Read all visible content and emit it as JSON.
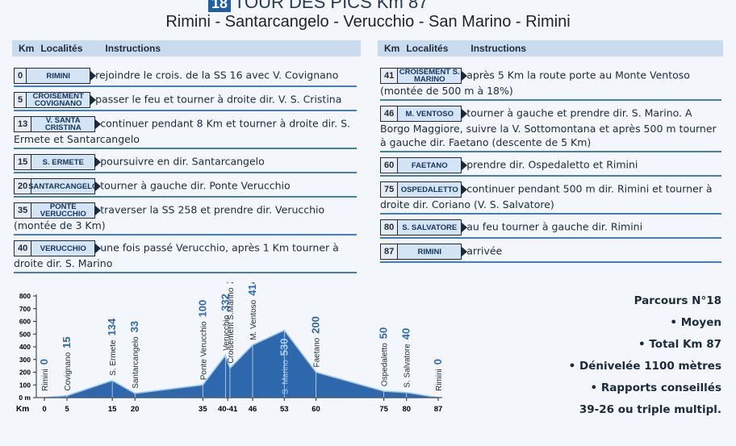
{
  "header": {
    "number": "18",
    "title": "TOUR DES PICS Km 87",
    "route": "Rimini - Santarcangelo - Verucchio - San Marino - Rimini"
  },
  "columns": [
    "Km",
    "Localités",
    "Instructions"
  ],
  "left_rows": [
    {
      "km": "0",
      "place": "RIMINI",
      "text": "rejoindre le crois. de la SS 16 avec V. Covignano"
    },
    {
      "km": "5",
      "place": "CROISEMENT COVIGNANO",
      "text": "passer le feu et tourner à droite dir. V. S. Cristina"
    },
    {
      "km": "13",
      "place": "V. SANTA CRISTINA",
      "text": "continuer pendant 8 Km et tourner à droite dir. S. Ermete et Santarcangelo"
    },
    {
      "km": "15",
      "place": "S. ERMETE",
      "text": "poursuivre en dir. Santarcangelo"
    },
    {
      "km": "20",
      "place": "SANTARCANGELO",
      "text": "tourner à gauche dir. Ponte Verucchio"
    },
    {
      "km": "35",
      "place": "PONTE VERUCCHIO",
      "text": "traverser la SS 258 et prendre dir. Verucchio (montée de 3 Km)"
    },
    {
      "km": "40",
      "place": "VERUCCHIO",
      "text": "une fois passé Verucchio, après 1 Km tourner à droite dir. S. Marino"
    }
  ],
  "right_rows": [
    {
      "km": "41",
      "place": "CROISEMENT S. MARINO",
      "text": "après 5 Km la route porte au Monte Ventoso (montée de 500 m à 18%)"
    },
    {
      "km": "46",
      "place": "M. VENTOSO",
      "text": "tourner à gauche et prendre dir. S. Marino. A Borgo Maggiore, suivre la V. Sottomontana et après 500 m tourner à gauche dir. Faetano (descente de 5 Km)"
    },
    {
      "km": "60",
      "place": "FAETANO",
      "text": "prendre dir. Ospedaletto et Rimini"
    },
    {
      "km": "75",
      "place": "OSPEDALETTO",
      "text": "continuer pendant 500 m dir. Rimini et tourner à droite dir. Coriano (V. S. Salvatore)"
    },
    {
      "km": "80",
      "place": "S. SALVATORE",
      "text": "au feu tourner à gauche dir. Rimini"
    },
    {
      "km": "87",
      "place": "RIMINI",
      "text": "arrivée"
    }
  ],
  "chart_data": {
    "type": "area",
    "x_label": "Km",
    "names": [
      "Rimini",
      "Covignano",
      "S. Ermete",
      "Santarcangelo",
      "Ponte Verucchio",
      "Verucchio",
      "Croisement S.Marino",
      "M. Ventoso",
      "S. Marino",
      "Faetano",
      "Ospedaletto",
      "S. Salvatore",
      "Rimini"
    ],
    "x": [
      0,
      5,
      15,
      20,
      35,
      40,
      41,
      46,
      53,
      60,
      75,
      80,
      87
    ],
    "values": [
      0,
      15,
      134,
      33,
      100,
      332,
      231,
      414,
      530,
      200,
      50,
      40,
      0
    ],
    "color": "#2d68ad",
    "xlim": [
      0,
      87
    ],
    "ylim": [
      0,
      800
    ],
    "xticks": [
      0,
      5,
      15,
      20,
      35,
      {
        "value": 40.5,
        "label": "40-41"
      },
      46,
      53,
      60,
      75,
      80,
      87
    ],
    "yticks": [
      {
        "value": 0,
        "label": "0 m"
      },
      100,
      200,
      300,
      400,
      500,
      600,
      700,
      800
    ]
  },
  "summary": {
    "title": "Parcours N°18",
    "items": [
      "Moyen",
      "Total Km 87",
      "Dénivelée 1100 mètres",
      "Rapports conseillés"
    ],
    "note": "39-26 ou triple multipl."
  }
}
